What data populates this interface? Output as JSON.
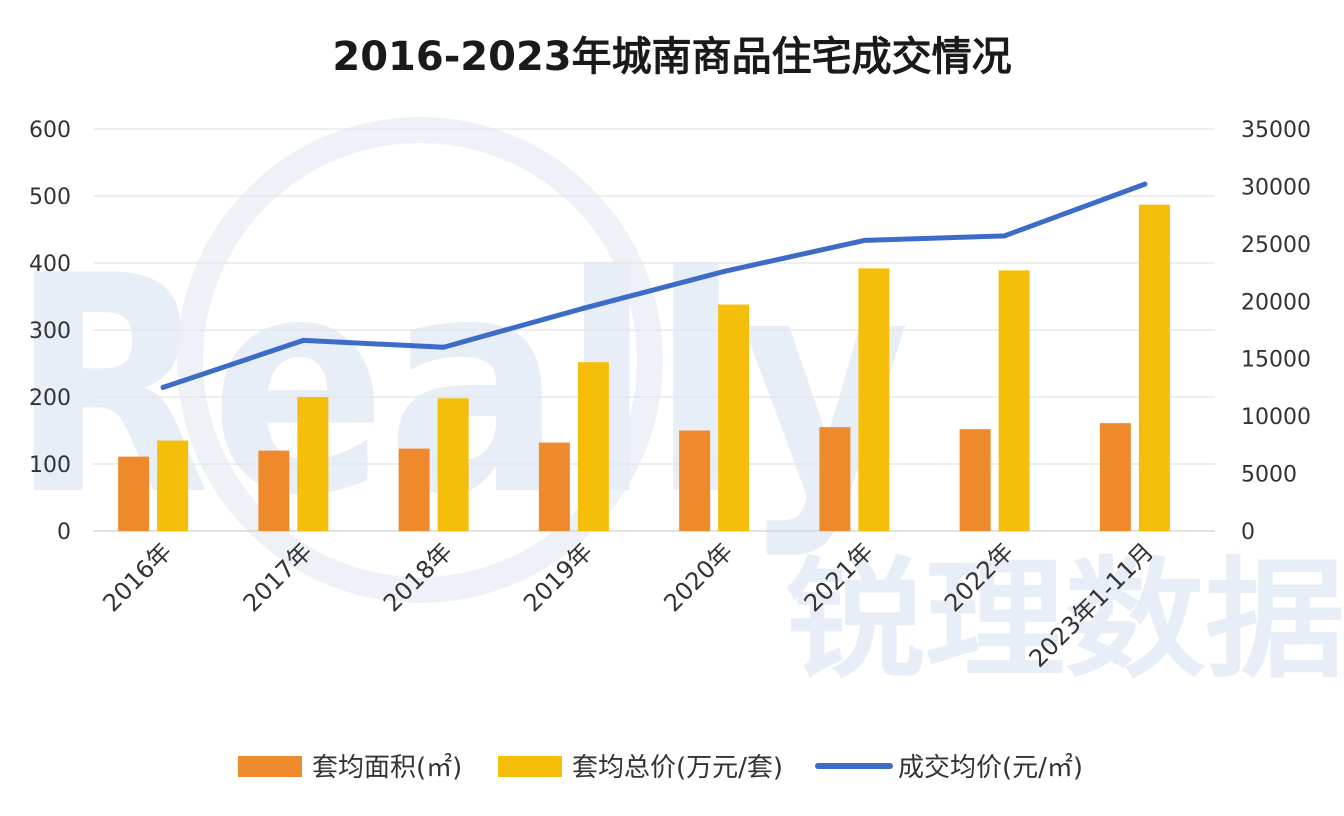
{
  "chart_data": {
    "type": "bar+line",
    "title": "2016-2023年城南商品住宅成交情况",
    "categories": [
      "2016年",
      "2017年",
      "2018年",
      "2019年",
      "2020年",
      "2021年",
      "2022年",
      "2023年1-11月"
    ],
    "series": [
      {
        "name": "套均面积(㎡)",
        "type": "bar",
        "axis": "left",
        "color": "#ee8a2b",
        "values": [
          111,
          120,
          123,
          132,
          150,
          155,
          152,
          161
        ]
      },
      {
        "name": "套均总价(万元/套)",
        "type": "bar",
        "axis": "left",
        "color": "#f5be0b",
        "values": [
          135,
          200,
          198,
          252,
          338,
          392,
          389,
          487
        ]
      },
      {
        "name": "成交均价(元/㎡)",
        "type": "line",
        "axis": "right",
        "color": "#3d6cc8",
        "values": [
          12500,
          16600,
          16000,
          19400,
          22600,
          25300,
          25700,
          30200
        ]
      }
    ],
    "yaxis_left": {
      "min": 0,
      "max": 600,
      "ticks": [
        "600",
        "500",
        "400",
        "300",
        "200",
        "100",
        "0"
      ]
    },
    "yaxis_right": {
      "min": 0,
      "max": 35000,
      "ticks": [
        "35000",
        "30000",
        "25000",
        "20000",
        "15000",
        "10000",
        "5000",
        "0"
      ]
    },
    "grid": true,
    "legend_position": "bottom"
  },
  "watermark": {
    "latin": "Really",
    "cjk": "锐理数据"
  }
}
